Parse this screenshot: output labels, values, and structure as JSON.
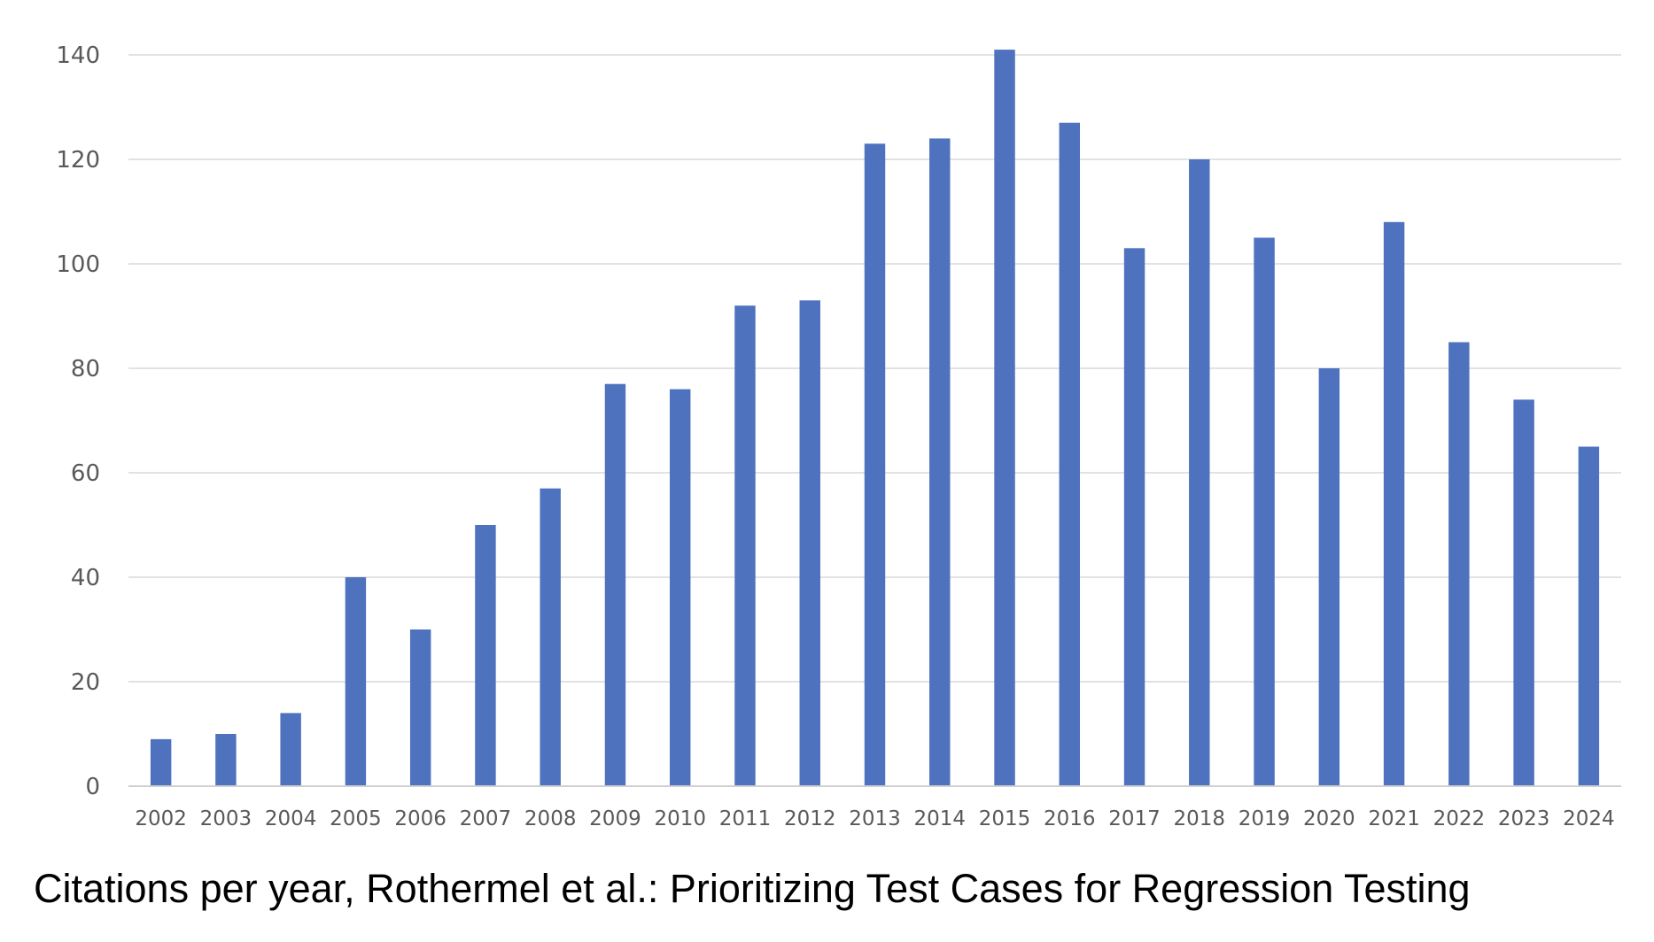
{
  "caption": "Citations per year, Rothermel et al.: Prioritizing Test Cases for Regression Testing",
  "chart_data": {
    "type": "bar",
    "title": "",
    "xlabel": "",
    "ylabel": "",
    "categories": [
      "2002",
      "2003",
      "2004",
      "2005",
      "2006",
      "2007",
      "2008",
      "2009",
      "2010",
      "2011",
      "2012",
      "2013",
      "2014",
      "2015",
      "2016",
      "2017",
      "2018",
      "2019",
      "2020",
      "2021",
      "2022",
      "2023",
      "2024"
    ],
    "series": [
      {
        "values": [
          9,
          10,
          14,
          40,
          30,
          50,
          57,
          77,
          76,
          92,
          93,
          123,
          124,
          141,
          127,
          103,
          120,
          105,
          80,
          108,
          85,
          74,
          65
        ],
        "color": "#4f72be"
      }
    ],
    "ylim": [
      0,
      140
    ],
    "yticks": [
      0,
      20,
      40,
      60,
      80,
      100,
      120,
      140
    ],
    "grid": true,
    "legend": "none"
  }
}
